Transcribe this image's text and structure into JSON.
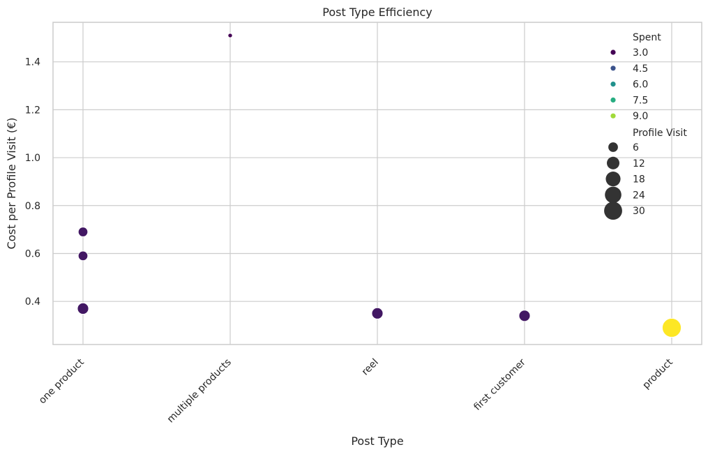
{
  "chart_data": {
    "type": "scatter",
    "title": "Post Type Efficiency",
    "xlabel": "Post Type",
    "ylabel": "Cost per Profile Visit (€)",
    "categories": [
      "one product",
      "multiple products",
      "reel",
      "first customer",
      "product"
    ],
    "ylim": [
      0.22,
      1.565
    ],
    "yticks": [
      0.4,
      0.6,
      0.8,
      1.0,
      1.2,
      1.4
    ],
    "ytick_labels": [
      "0.4",
      "0.6",
      "0.8",
      "1.0",
      "1.2",
      "1.4"
    ],
    "grid": true,
    "colormap": "viridis",
    "points": [
      {
        "category": "one product",
        "y": 0.69,
        "spent": 3.0,
        "profile_visit": 6
      },
      {
        "category": "one product",
        "y": 0.59,
        "spent": 3.0,
        "profile_visit": 6
      },
      {
        "category": "one product",
        "y": 0.37,
        "spent": 3.0,
        "profile_visit": 9
      },
      {
        "category": "multiple products",
        "y": 1.51,
        "spent": 2.5,
        "profile_visit": 2
      },
      {
        "category": "reel",
        "y": 0.35,
        "spent": 3.0,
        "profile_visit": 9
      },
      {
        "category": "first customer",
        "y": 0.34,
        "spent": 3.0,
        "profile_visit": 9
      },
      {
        "category": "product",
        "y": 0.29,
        "spent": 10.0,
        "profile_visit": 34
      }
    ],
    "legend": {
      "placement": "upper right",
      "hue_title": "Spent",
      "hue_entries": [
        {
          "label": "3.0",
          "color": "#440154"
        },
        {
          "label": "4.5",
          "color": "#3b528b"
        },
        {
          "label": "6.0",
          "color": "#21918c"
        },
        {
          "label": "7.5",
          "color": "#27ad81"
        },
        {
          "label": "9.0",
          "color": "#a0da39"
        }
      ],
      "size_title": "Profile Visit",
      "size_entries": [
        {
          "label": "6",
          "value": 6
        },
        {
          "label": "12",
          "value": 12
        },
        {
          "label": "18",
          "value": 18
        },
        {
          "label": "24",
          "value": 24
        },
        {
          "label": "30",
          "value": 30
        }
      ],
      "size_marker_color": "#333333"
    },
    "point_edge_color": "#ffffff"
  }
}
